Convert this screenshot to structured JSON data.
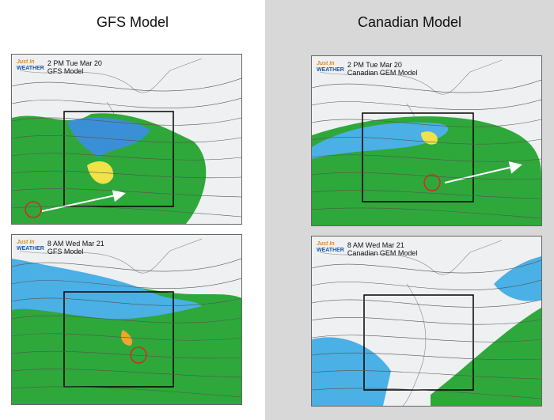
{
  "columns": [
    {
      "title": "GFS Model",
      "panels": [
        {
          "logo_top": "Just In",
          "logo_bottom": "WEATHER",
          "time": "2 PM Tue Mar 20",
          "model": "GFS Model"
        },
        {
          "logo_top": "Just In",
          "logo_bottom": "WEATHER",
          "time": "8 AM Wed Mar 21",
          "model": "GFS Model"
        }
      ]
    },
    {
      "title": "Canadian Model",
      "panels": [
        {
          "logo_top": "Just In",
          "logo_bottom": "WEATHER",
          "time": "2 PM Tue Mar 20",
          "model": "Canadian GEM Model"
        },
        {
          "logo_top": "Just In",
          "logo_bottom": "WEATHER",
          "time": "8 AM Wed Mar 21",
          "model": "Canadian GEM Model"
        }
      ]
    }
  ]
}
